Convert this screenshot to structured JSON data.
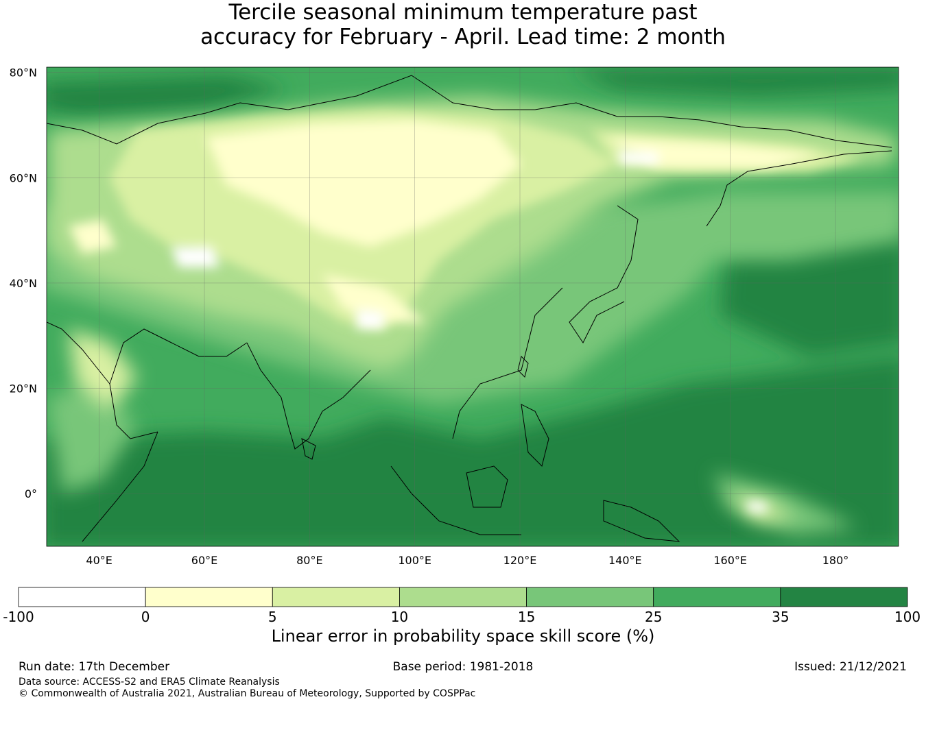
{
  "title": {
    "line1": "Tercile seasonal minimum temperature past",
    "line2": "accuracy for February - April. Lead time: 2 month"
  },
  "map": {
    "extent": {
      "lon_min": 30,
      "lon_max": 192,
      "lat_min": -10,
      "lat_max": 81
    },
    "lat_labels": [
      {
        "value": 80,
        "text": "80°N"
      },
      {
        "value": 60,
        "text": "60°N"
      },
      {
        "value": 40,
        "text": "40°N"
      },
      {
        "value": 20,
        "text": "20°N"
      },
      {
        "value": 0,
        "text": "0°"
      }
    ],
    "lon_labels": [
      {
        "value": 40,
        "text": "40°E"
      },
      {
        "value": 60,
        "text": "60°E"
      },
      {
        "value": 80,
        "text": "80°E"
      },
      {
        "value": 100,
        "text": "100°E"
      },
      {
        "value": 120,
        "text": "120°E"
      },
      {
        "value": 140,
        "text": "140°E"
      },
      {
        "value": 160,
        "text": "160°E"
      },
      {
        "value": 180,
        "text": "180°"
      }
    ]
  },
  "colorbar": {
    "ticks": [
      "-100",
      "0",
      "5",
      "10",
      "15",
      "25",
      "35",
      "100"
    ],
    "bins": [
      {
        "from": -100,
        "to": 0,
        "color": "#ffffff"
      },
      {
        "from": 0,
        "to": 5,
        "color": "#ffffcc"
      },
      {
        "from": 5,
        "to": 10,
        "color": "#d9f0a3"
      },
      {
        "from": 10,
        "to": 15,
        "color": "#addd8e"
      },
      {
        "from": 15,
        "to": 25,
        "color": "#78c679"
      },
      {
        "from": 25,
        "to": 35,
        "color": "#41ab5d"
      },
      {
        "from": 35,
        "to": 100,
        "color": "#238443"
      }
    ],
    "label": "Linear error in probability space skill score (%)"
  },
  "footer": {
    "run_date": "Run date: 17th December",
    "base_period": "Base period: 1981-2018",
    "issued": "Issued: 21/12/2021",
    "data_source": "Data source: ACCESS-S2 and ERA5 Climate Reanalysis",
    "copyright": "© Commonwealth of Australia 2021, Australian Bureau of Meteorology, Supported by COSPPac"
  }
}
